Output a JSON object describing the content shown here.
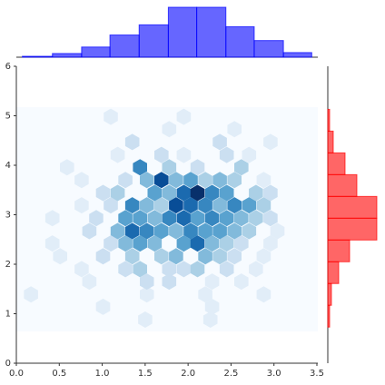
{
  "chart_data": {
    "type": "hexbin",
    "x": [
      1.5,
      2.26,
      1.01,
      2.28,
      0.17,
      1.52,
      2.2,
      2.88,
      0.85,
      1.52,
      1.78,
      2.28,
      2.62,
      0.76,
      1.27,
      1.44,
      1.78,
      1.95,
      2.11,
      2.45,
      2.79,
      0.51,
      1.01,
      1.35,
      1.69,
      1.86,
      2.2,
      2.37,
      2.54,
      2.88,
      0.42,
      1.1,
      1.27,
      1.44,
      1.61,
      1.95,
      2.11,
      2.28,
      2.45,
      2.62,
      2.96,
      0.85,
      1.18,
      1.35,
      1.52,
      1.69,
      1.86,
      2.03,
      2.2,
      2.37,
      2.54,
      2.71,
      3.04,
      0.42,
      0.93,
      1.27,
      1.44,
      1.61,
      1.78,
      1.95,
      2.11,
      2.28,
      2.45,
      2.62,
      2.79,
      2.96,
      0.76,
      1.1,
      1.35,
      1.52,
      1.69,
      1.86,
      2.03,
      2.2,
      2.37,
      2.54,
      2.71,
      2.88,
      1.01,
      1.18,
      1.61,
      1.78,
      1.95,
      2.11,
      2.28,
      2.45,
      2.79,
      2.96,
      0.76,
      1.27,
      1.52,
      1.69,
      1.86,
      2.03,
      2.2,
      2.37,
      2.54,
      2.88,
      0.59,
      1.44,
      1.78,
      2.11,
      2.62,
      1.18,
      1.69,
      1.95,
      2.45,
      2.71,
      1.35,
      2.37,
      2.96,
      1.78,
      2.54,
      1.1,
      1.95
    ],
    "y": [
      0.88,
      0.88,
      1.14,
      1.14,
      1.39,
      1.39,
      1.39,
      1.39,
      1.65,
      1.65,
      1.65,
      1.65,
      1.65,
      1.9,
      1.9,
      1.9,
      1.9,
      1.9,
      1.9,
      1.9,
      1.9,
      2.16,
      2.16,
      2.16,
      2.16,
      2.16,
      2.16,
      2.16,
      2.16,
      2.16,
      2.42,
      2.42,
      2.42,
      2.42,
      2.42,
      2.42,
      2.42,
      2.42,
      2.42,
      2.42,
      2.42,
      2.67,
      2.67,
      2.67,
      2.67,
      2.67,
      2.67,
      2.67,
      2.67,
      2.67,
      2.67,
      2.67,
      2.67,
      2.93,
      2.93,
      2.93,
      2.93,
      2.93,
      2.93,
      2.93,
      2.93,
      2.93,
      2.93,
      2.93,
      2.93,
      2.93,
      3.19,
      3.19,
      3.19,
      3.19,
      3.19,
      3.19,
      3.19,
      3.19,
      3.19,
      3.19,
      3.19,
      3.19,
      3.44,
      3.44,
      3.44,
      3.44,
      3.44,
      3.44,
      3.44,
      3.44,
      3.44,
      3.44,
      3.7,
      3.7,
      3.7,
      3.7,
      3.7,
      3.7,
      3.7,
      3.7,
      3.7,
      3.7,
      3.96,
      3.96,
      3.96,
      3.96,
      3.96,
      4.21,
      4.21,
      4.21,
      4.21,
      4.21,
      4.47,
      4.47,
      4.47,
      4.73,
      4.73,
      4.98,
      4.98
    ],
    "values": [
      1,
      1,
      1,
      1,
      1,
      1,
      1,
      1,
      1,
      2,
      2,
      1,
      1,
      1,
      2,
      3,
      2,
      2,
      3,
      2,
      1,
      1,
      2,
      3,
      3,
      4,
      4,
      3,
      2,
      1,
      1,
      2,
      4,
      5,
      4,
      5,
      7,
      4,
      3,
      2,
      1,
      2,
      4,
      7,
      6,
      5,
      4,
      6,
      5,
      5,
      4,
      3,
      1,
      1,
      2,
      5,
      5,
      4,
      6,
      7,
      5,
      6,
      5,
      4,
      3,
      2,
      1,
      2,
      6,
      4,
      3,
      8,
      7,
      6,
      4,
      6,
      5,
      3,
      2,
      3,
      5,
      4,
      7,
      9,
      6,
      5,
      3,
      2,
      1,
      2,
      4,
      8,
      4,
      5,
      3,
      4,
      3,
      1,
      1,
      6,
      3,
      2,
      3,
      1,
      2,
      1,
      2,
      1,
      2,
      2,
      1,
      1,
      1,
      1,
      1
    ],
    "colormap": [
      "#f7fbff",
      "#deebf7",
      "#c6dbef",
      "#9ecae1",
      "#6baed6",
      "#4292c6",
      "#2171b5",
      "#08519c",
      "#08306b"
    ],
    "xlim": [
      0,
      3.5
    ],
    "ylim": [
      0,
      6
    ],
    "xticks": [
      {
        "value": 0,
        "label": "0.0"
      },
      {
        "value": 0.5,
        "label": "0.5"
      },
      {
        "value": 1,
        "label": "1.0"
      },
      {
        "value": 1.5,
        "label": "1.5"
      },
      {
        "value": 2,
        "label": "2.0"
      },
      {
        "value": 2.5,
        "label": "2.5"
      },
      {
        "value": 3,
        "label": "3.0"
      },
      {
        "value": 3.5,
        "label": "3.5"
      }
    ],
    "yticks": [
      0,
      1,
      2,
      3,
      4,
      5,
      6
    ],
    "marginal_x": {
      "bins": [
        0.07,
        0.42,
        0.76,
        1.09,
        1.43,
        1.77,
        2.1,
        2.44,
        2.77,
        3.11,
        3.44
      ],
      "values": [
        1,
        4,
        11,
        24,
        35,
        54,
        54,
        33,
        18,
        5
      ],
      "color": "#0000ff"
    },
    "marginal_y": {
      "bins": [
        0.73,
        1.17,
        1.61,
        2.05,
        2.49,
        2.93,
        3.37,
        3.81,
        4.25,
        4.69,
        5.13
      ],
      "values": [
        2,
        4,
        12,
        24,
        54,
        54,
        32,
        19,
        6,
        2
      ],
      "color": "#ff0000"
    }
  }
}
